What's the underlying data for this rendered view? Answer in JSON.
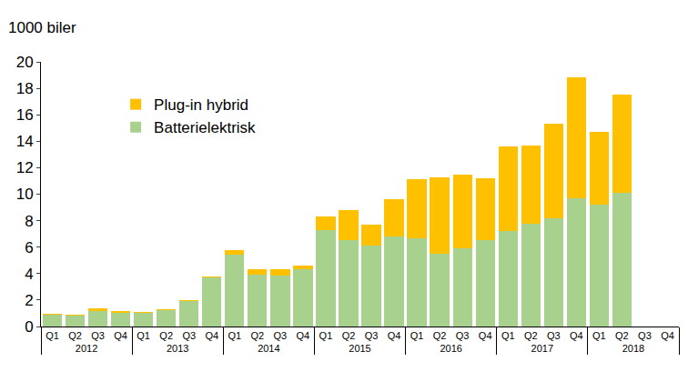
{
  "chart_data": {
    "type": "bar",
    "stacked": true,
    "y_label": "1000 biler",
    "categories": [
      [
        "2012",
        "Q1"
      ],
      [
        "2012",
        "Q2"
      ],
      [
        "2012",
        "Q3"
      ],
      [
        "2012",
        "Q4"
      ],
      [
        "2013",
        "Q1"
      ],
      [
        "2013",
        "Q2"
      ],
      [
        "2013",
        "Q3"
      ],
      [
        "2013",
        "Q4"
      ],
      [
        "2014",
        "Q1"
      ],
      [
        "2014",
        "Q2"
      ],
      [
        "2014",
        "Q3"
      ],
      [
        "2014",
        "Q4"
      ],
      [
        "2015",
        "Q1"
      ],
      [
        "2015",
        "Q2"
      ],
      [
        "2015",
        "Q3"
      ],
      [
        "2015",
        "Q4"
      ],
      [
        "2016",
        "Q1"
      ],
      [
        "2016",
        "Q2"
      ],
      [
        "2016",
        "Q3"
      ],
      [
        "2016",
        "Q4"
      ],
      [
        "2017",
        "Q1"
      ],
      [
        "2017",
        "Q2"
      ],
      [
        "2017",
        "Q3"
      ],
      [
        "2017",
        "Q4"
      ],
      [
        "2018",
        "Q1"
      ],
      [
        "2018",
        "Q2"
      ],
      [
        "2018",
        "Q3"
      ],
      [
        "2018",
        "Q4"
      ]
    ],
    "series": [
      {
        "name": "Batterielektrisk",
        "color": "#a9d18e",
        "values": [
          0.9,
          0.85,
          1.2,
          1.0,
          1.05,
          1.25,
          1.9,
          3.7,
          5.4,
          3.95,
          3.85,
          4.3,
          7.3,
          6.5,
          6.1,
          6.8,
          6.7,
          5.5,
          5.9,
          6.5,
          7.2,
          7.8,
          8.2,
          9.7,
          9.2,
          10.1,
          null,
          null
        ]
      },
      {
        "name": "Plug-in hybrid",
        "color": "#ffc000",
        "values": [
          0.05,
          0.05,
          0.15,
          0.15,
          0.05,
          0.05,
          0.1,
          0.1,
          0.4,
          0.4,
          0.5,
          0.3,
          1.0,
          2.3,
          1.6,
          2.8,
          4.4,
          5.8,
          5.6,
          4.7,
          6.4,
          5.9,
          7.1,
          9.1,
          5.5,
          7.4,
          null,
          null
        ]
      }
    ],
    "ylim": [
      0,
      20
    ],
    "yticks": [
      0,
      2,
      4,
      6,
      8,
      10,
      12,
      14,
      16,
      18,
      20
    ],
    "grid": false,
    "legend": "upper left"
  }
}
